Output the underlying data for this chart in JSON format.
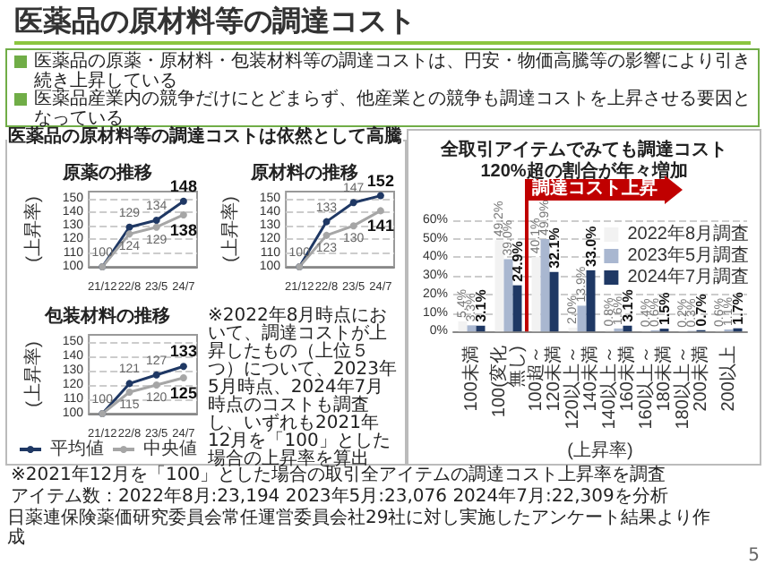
{
  "chart_data": [
    {
      "type": "other",
      "title": "医薬品の原材料等の調達コスト",
      "annotations": [
        "医薬品の原薬・原材料・包装材料等の調達コストは、円安・物価高騰等の影響により引き続き上昇している",
        "医薬品産業内の競争だけにとどまらず、他産業との競争も調達コストを上昇させる要因となっている",
        "医薬品の原材料等の調達コストは依然として高騰",
        "日薬連保険薬価研究委員会常任運営委員会社29社に対し実施したアンケート結果より作成",
        "5"
      ]
    },
    {
      "type": "line",
      "title": "原薬の推移",
      "ylabel": "(上昇率)",
      "categories": [
        "21/12",
        "22/8",
        "23/5",
        "24/7"
      ],
      "series": [
        {
          "color": "#1f3864",
          "values": [
            100,
            129,
            134,
            148
          ],
          "value_labels": [
            "100",
            "129",
            "134",
            "148"
          ]
        },
        {
          "color": "#a6a6a6",
          "values": [
            100,
            124,
            129,
            138
          ],
          "value_labels": [
            null,
            "124",
            "129",
            "138"
          ]
        }
      ],
      "ylim": [
        100,
        155
      ],
      "yticks": [
        100,
        110,
        120,
        130,
        140,
        150
      ],
      "grid": "y",
      "marker": "circle"
    },
    {
      "type": "line",
      "title": "原材料の推移",
      "ylabel": "(上昇率)",
      "categories": [
        "21/12",
        "22/8",
        "23/5",
        "24/7"
      ],
      "series": [
        {
          "color": "#1f3864",
          "values": [
            100,
            133,
            147,
            152
          ],
          "value_labels": [
            "100",
            "133",
            "147",
            "152"
          ]
        },
        {
          "color": "#a6a6a6",
          "values": [
            100,
            123,
            130,
            141
          ],
          "value_labels": [
            null,
            "123",
            "130",
            "141"
          ]
        }
      ],
      "ylim": [
        100,
        155
      ],
      "yticks": [
        100,
        110,
        120,
        130,
        140,
        150
      ],
      "grid": "y",
      "marker": "circle"
    },
    {
      "type": "line",
      "title": "包装材料の推移",
      "ylabel": "(上昇率)",
      "categories": [
        "21/12",
        "22/8",
        "23/5",
        "24/7"
      ],
      "series": [
        {
          "name": "平均値",
          "color": "#1f3864",
          "values": [
            100,
            121,
            127,
            133
          ],
          "value_labels": [
            "100",
            "121",
            "127",
            "133"
          ]
        },
        {
          "name": "中央値",
          "color": "#a6a6a6",
          "values": [
            100,
            115,
            120,
            125
          ],
          "value_labels": [
            null,
            "115",
            "120",
            "125"
          ]
        }
      ],
      "ylim": [
        100,
        155
      ],
      "yticks": [
        100,
        110,
        120,
        130,
        140,
        150
      ],
      "grid": "y",
      "marker": "circle",
      "legend": "bottom",
      "annotations": [
        "※2022年8月時点において、調達コストが上昇したもの（上位５つ）について、2023年5月時点、2024年7月時点のコストも調査し、いずれも2021年12月を「100」とした場合の上昇率を算出"
      ]
    },
    {
      "type": "bar",
      "title": "全取引アイテムでみても調達コスト120%超の割合が年々増加",
      "xlabel": "(上昇率)",
      "categories": [
        "100未満",
        "100(変化無し)",
        "100超～120未満",
        "120以上～140未満",
        "140以上～160未満",
        "160以上～180未満",
        "180以上～200未満",
        "200以上"
      ],
      "series": [
        {
          "name": "2022年8月調査",
          "color": "#f2f2f2",
          "values": [
            5.4,
            49.2,
            40.1,
            2.0,
            0.8,
            0.4,
            0.2,
            0.6
          ],
          "value_labels": [
            "5.4%",
            "49.2%",
            "40.1%",
            "2.0%",
            "0.8%",
            "0.4%",
            "0.2%",
            "0.6%"
          ]
        },
        {
          "name": "2023年5月調査",
          "color": "#a9b7d0",
          "values": [
            3.3,
            39.0,
            49.9,
            13.9,
            1.6,
            0.6,
            0.3,
            1.1
          ],
          "value_labels": [
            "3.3%",
            "39.0%",
            "49.9%",
            "13.9%",
            "1.6%",
            "0.6%",
            "0.3%",
            "1.1%"
          ]
        },
        {
          "name": "2024年7月調査",
          "color": "#1f3864",
          "values": [
            3.1,
            24.9,
            32.1,
            33.0,
            3.1,
            1.5,
            0.7,
            1.7
          ],
          "value_labels": [
            "3.1%",
            "24.9%",
            "32.1%",
            "33.0%",
            "3.1%",
            "1.5%",
            "0.7%",
            "1.7%"
          ]
        }
      ],
      "ylim": [
        0,
        60
      ],
      "yticks": [
        {
          "value": 0,
          "label": "0%"
        },
        {
          "value": 10,
          "label": "10%"
        },
        {
          "value": 20,
          "label": "20%"
        },
        {
          "value": 30,
          "label": "30%"
        },
        {
          "value": 40,
          "label": "40%"
        },
        {
          "value": 50,
          "label": "50%"
        },
        {
          "value": 60,
          "label": "60%"
        }
      ],
      "grid": "y",
      "legend": "top right",
      "annotations": [
        "調達コスト上昇",
        "※2021年12月を「100」とした場合の取引全アイテムの調達コスト上昇率を調査",
        "アイテム数：2022年8月:23,194 2023年5月:23,076 2024年7月:22,309を分析"
      ]
    }
  ]
}
